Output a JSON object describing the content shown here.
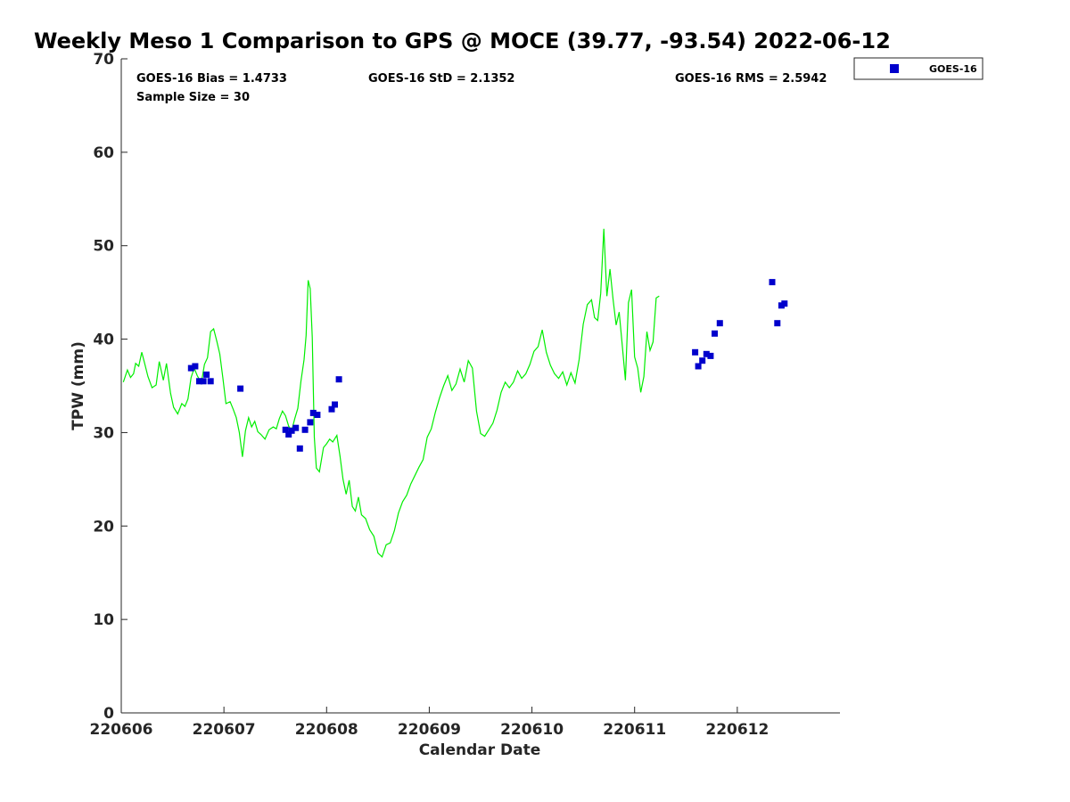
{
  "chart_data": {
    "type": "scatter",
    "title": "Weekly Meso 1 Comparison to GPS @ MOCE (39.77, -93.54) 2022-06-12",
    "xlabel": "Calendar Date",
    "ylabel": "TPW (mm)",
    "xlim": [
      220606,
      220613
    ],
    "ylim": [
      0,
      70
    ],
    "x_ticks": [
      220606,
      220607,
      220608,
      220609,
      220610,
      220611,
      220612
    ],
    "x_tick_labels": [
      "220606",
      "220607",
      "220608",
      "220609",
      "220610",
      "220611",
      "220612"
    ],
    "y_ticks": [
      0,
      10,
      20,
      30,
      40,
      50,
      60,
      70
    ],
    "y_tick_labels": [
      "0",
      "10",
      "20",
      "30",
      "40",
      "50",
      "60",
      "70"
    ],
    "grid": false,
    "legend_position": "outside-top-right",
    "stats": {
      "bias": "GOES-16 Bias = 1.4733",
      "sample": "Sample Size = 30",
      "std": "GOES-16 StD = 2.1352",
      "rms": "GOES-16 RMS = 2.5942"
    },
    "series": [
      {
        "name": "GOES-16",
        "kind": "scatter",
        "marker": "square",
        "color": "#0000cc",
        "points": [
          [
            220606.68,
            36.9
          ],
          [
            220606.72,
            37.1
          ],
          [
            220606.76,
            35.5
          ],
          [
            220606.8,
            35.5
          ],
          [
            220606.83,
            36.2
          ],
          [
            220606.87,
            35.5
          ],
          [
            220607.16,
            34.7
          ],
          [
            220607.6,
            30.3
          ],
          [
            220607.63,
            29.8
          ],
          [
            220607.66,
            30.2
          ],
          [
            220607.7,
            30.5
          ],
          [
            220607.74,
            28.3
          ],
          [
            220607.79,
            30.3
          ],
          [
            220607.84,
            31.1
          ],
          [
            220607.87,
            32.1
          ],
          [
            220607.91,
            31.9
          ],
          [
            220608.05,
            32.5
          ],
          [
            220608.08,
            33.0
          ],
          [
            220608.12,
            35.7
          ],
          [
            220611.59,
            38.6
          ],
          [
            220611.62,
            37.1
          ],
          [
            220611.66,
            37.7
          ],
          [
            220611.7,
            38.4
          ],
          [
            220611.74,
            38.2
          ],
          [
            220611.78,
            40.6
          ],
          [
            220611.83,
            41.7
          ],
          [
            220612.34,
            46.1
          ],
          [
            220612.39,
            41.7
          ],
          [
            220612.43,
            43.6
          ],
          [
            220612.46,
            43.8
          ]
        ]
      },
      {
        "name": "",
        "kind": "line",
        "color": "#00ee00",
        "points": [
          [
            220606.02,
            35.4
          ],
          [
            220606.06,
            36.7
          ],
          [
            220606.09,
            35.9
          ],
          [
            220606.12,
            36.3
          ],
          [
            220606.14,
            37.4
          ],
          [
            220606.17,
            37.1
          ],
          [
            220606.2,
            38.6
          ],
          [
            220606.23,
            37.3
          ],
          [
            220606.26,
            36.0
          ],
          [
            220606.3,
            34.8
          ],
          [
            220606.34,
            35.1
          ],
          [
            220606.37,
            37.6
          ],
          [
            220606.41,
            35.6
          ],
          [
            220606.44,
            37.4
          ],
          [
            220606.48,
            34.2
          ],
          [
            220606.51,
            32.7
          ],
          [
            220606.55,
            32.0
          ],
          [
            220606.59,
            33.1
          ],
          [
            220606.62,
            32.8
          ],
          [
            220606.65,
            33.6
          ],
          [
            220606.68,
            35.9
          ],
          [
            220606.71,
            36.9
          ],
          [
            220606.74,
            36.1
          ],
          [
            220606.78,
            35.3
          ],
          [
            220606.81,
            37.3
          ],
          [
            220606.84,
            38.0
          ],
          [
            220606.87,
            40.8
          ],
          [
            220606.9,
            41.1
          ],
          [
            220606.93,
            39.8
          ],
          [
            220606.96,
            38.4
          ],
          [
            220606.99,
            35.8
          ],
          [
            220607.02,
            33.1
          ],
          [
            220607.06,
            33.3
          ],
          [
            220607.09,
            32.5
          ],
          [
            220607.12,
            31.6
          ],
          [
            220607.15,
            30.0
          ],
          [
            220607.18,
            27.4
          ],
          [
            220607.21,
            30.2
          ],
          [
            220607.24,
            31.6
          ],
          [
            220607.27,
            30.6
          ],
          [
            220607.3,
            31.2
          ],
          [
            220607.33,
            30.1
          ],
          [
            220607.36,
            29.8
          ],
          [
            220607.4,
            29.3
          ],
          [
            220607.44,
            30.3
          ],
          [
            220607.48,
            30.6
          ],
          [
            220607.51,
            30.4
          ],
          [
            220607.54,
            31.5
          ],
          [
            220607.57,
            32.3
          ],
          [
            220607.6,
            31.8
          ],
          [
            220607.63,
            30.7
          ],
          [
            220607.66,
            30.2
          ],
          [
            220607.69,
            31.5
          ],
          [
            220607.72,
            32.6
          ],
          [
            220607.75,
            35.5
          ],
          [
            220607.78,
            37.8
          ],
          [
            220607.8,
            40.4
          ],
          [
            220607.82,
            46.3
          ],
          [
            220607.84,
            45.4
          ],
          [
            220607.86,
            40.2
          ],
          [
            220607.88,
            29.5
          ],
          [
            220607.9,
            26.2
          ],
          [
            220607.93,
            25.8
          ],
          [
            220607.97,
            28.4
          ],
          [
            220608.0,
            28.8
          ],
          [
            220608.03,
            29.3
          ],
          [
            220608.06,
            29.0
          ],
          [
            220608.1,
            29.7
          ],
          [
            220608.13,
            27.5
          ],
          [
            220608.16,
            25.0
          ],
          [
            220608.19,
            23.4
          ],
          [
            220608.22,
            24.9
          ],
          [
            220608.25,
            22.1
          ],
          [
            220608.28,
            21.6
          ],
          [
            220608.31,
            23.1
          ],
          [
            220608.34,
            21.2
          ],
          [
            220608.38,
            20.8
          ],
          [
            220608.42,
            19.6
          ],
          [
            220608.46,
            18.9
          ],
          [
            220608.5,
            17.1
          ],
          [
            220608.54,
            16.7
          ],
          [
            220608.58,
            18.0
          ],
          [
            220608.62,
            18.2
          ],
          [
            220608.66,
            19.5
          ],
          [
            220608.7,
            21.4
          ],
          [
            220608.74,
            22.6
          ],
          [
            220608.78,
            23.3
          ],
          [
            220608.82,
            24.5
          ],
          [
            220608.86,
            25.4
          ],
          [
            220608.9,
            26.3
          ],
          [
            220608.94,
            27.1
          ],
          [
            220608.98,
            29.5
          ],
          [
            220609.02,
            30.4
          ],
          [
            220609.06,
            32.2
          ],
          [
            220609.1,
            33.7
          ],
          [
            220609.14,
            35.0
          ],
          [
            220609.18,
            36.1
          ],
          [
            220609.22,
            34.5
          ],
          [
            220609.26,
            35.2
          ],
          [
            220609.3,
            36.8
          ],
          [
            220609.34,
            35.4
          ],
          [
            220609.38,
            37.7
          ],
          [
            220609.42,
            36.9
          ],
          [
            220609.46,
            32.3
          ],
          [
            220609.5,
            29.9
          ],
          [
            220609.54,
            29.6
          ],
          [
            220609.58,
            30.3
          ],
          [
            220609.62,
            31.0
          ],
          [
            220609.66,
            32.4
          ],
          [
            220609.7,
            34.3
          ],
          [
            220609.74,
            35.4
          ],
          [
            220609.78,
            34.8
          ],
          [
            220609.82,
            35.4
          ],
          [
            220609.86,
            36.6
          ],
          [
            220609.9,
            35.8
          ],
          [
            220609.94,
            36.3
          ],
          [
            220609.98,
            37.3
          ],
          [
            220610.02,
            38.7
          ],
          [
            220610.06,
            39.2
          ],
          [
            220610.1,
            41.0
          ],
          [
            220610.14,
            38.6
          ],
          [
            220610.18,
            37.2
          ],
          [
            220610.22,
            36.3
          ],
          [
            220610.26,
            35.8
          ],
          [
            220610.3,
            36.5
          ],
          [
            220610.34,
            35.1
          ],
          [
            220610.38,
            36.4
          ],
          [
            220610.42,
            35.3
          ],
          [
            220610.46,
            37.8
          ],
          [
            220610.5,
            41.6
          ],
          [
            220610.54,
            43.7
          ],
          [
            220610.58,
            44.2
          ],
          [
            220610.61,
            42.3
          ],
          [
            220610.64,
            42.0
          ],
          [
            220610.67,
            44.9
          ],
          [
            220610.7,
            51.8
          ],
          [
            220610.73,
            44.6
          ],
          [
            220610.76,
            47.5
          ],
          [
            220610.79,
            44.3
          ],
          [
            220610.82,
            41.5
          ],
          [
            220610.85,
            42.9
          ],
          [
            220610.88,
            39.3
          ],
          [
            220610.91,
            35.6
          ],
          [
            220610.94,
            43.9
          ],
          [
            220610.97,
            45.3
          ],
          [
            220611.0,
            38.1
          ],
          [
            220611.03,
            36.9
          ],
          [
            220611.06,
            34.3
          ],
          [
            220611.09,
            36.0
          ],
          [
            220611.12,
            40.8
          ],
          [
            220611.15,
            38.8
          ],
          [
            220611.18,
            39.7
          ],
          [
            220611.21,
            44.4
          ],
          [
            220611.24,
            44.6
          ]
        ]
      }
    ]
  }
}
